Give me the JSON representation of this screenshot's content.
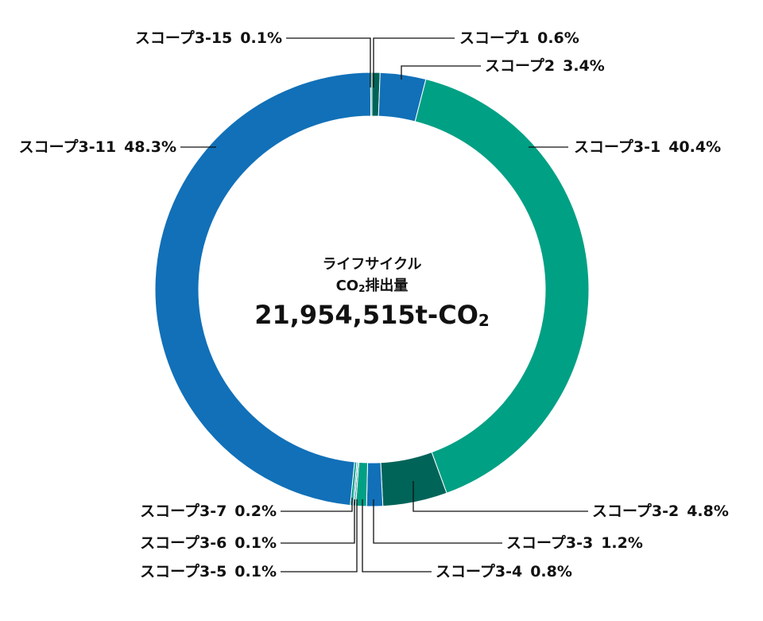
{
  "chart_data": {
    "type": "donut",
    "categories": [
      "スコープ1",
      "スコープ2",
      "スコープ3-1",
      "スコープ3-2",
      "スコープ3-3",
      "スコープ3-4",
      "スコープ3-5",
      "スコープ3-6",
      "スコープ3-7",
      "スコープ3-11",
      "スコープ3-15"
    ],
    "values": [
      0.6,
      3.4,
      40.4,
      4.8,
      1.2,
      0.8,
      0.1,
      0.1,
      0.2,
      48.3,
      0.1
    ],
    "value_labels": [
      "0.6%",
      "3.4%",
      "40.4%",
      "4.8%",
      "1.2%",
      "0.8%",
      "0.1%",
      "0.1%",
      "0.2%",
      "48.3%",
      "0.1%"
    ],
    "colors": [
      "#006458",
      "#1170b8",
      "#00a084",
      "#006458",
      "#1170b8",
      "#00a084",
      "#006458",
      "#1170b8",
      "#00a084",
      "#1170b8",
      "#00a084"
    ],
    "center_text": {
      "line1": "ライフサイクル",
      "line2": [
        "CO",
        "2",
        "排出量"
      ],
      "total": [
        "21,954,515t-CO",
        "2"
      ]
    }
  }
}
